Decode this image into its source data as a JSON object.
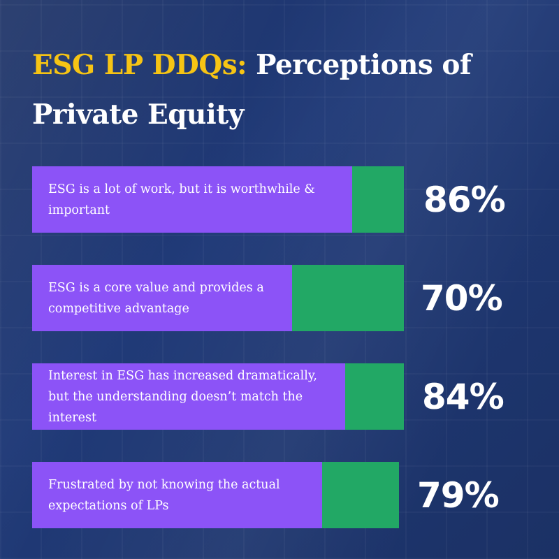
{
  "title": {
    "accent": "ESG LP DDQs:",
    "rest": "Perceptions of Private Equity"
  },
  "colors": {
    "background": "#1d3266",
    "accent_yellow": "#f6c414",
    "bar_purple": "#8c53f7",
    "bar_green": "#22a865",
    "text": "#ffffff"
  },
  "chart_data": {
    "type": "bar",
    "orientation": "horizontal",
    "categories": [
      "ESG is a lot of work, but it is worthwhile & important",
      "ESG is a core value and provides a competitive advantage",
      "Interest in ESG has increased dramatically, but the understanding doesn’t match the interest",
      "Frustrated by not knowing the actual expectations of LPs"
    ],
    "values": [
      86,
      70,
      84,
      79
    ],
    "value_labels": [
      "86%",
      "70%",
      "84%",
      "79%"
    ],
    "unit": "%",
    "title": "ESG LP DDQs: Perceptions of Private Equity",
    "xlim": [
      0,
      100
    ],
    "grid": false,
    "legend": "none"
  },
  "rows": [
    {
      "label": "ESG is a lot of work, but it is worthwhile & important",
      "value": "86%"
    },
    {
      "label": "ESG is a core value and provides a competitive advantage",
      "value": "70%"
    },
    {
      "label": "Interest in ESG has increased dramatically, but the understanding doesn’t match the interest",
      "value": "84%"
    },
    {
      "label": "Frustrated by not knowing the actual expectations of LPs",
      "value": "79%"
    }
  ]
}
